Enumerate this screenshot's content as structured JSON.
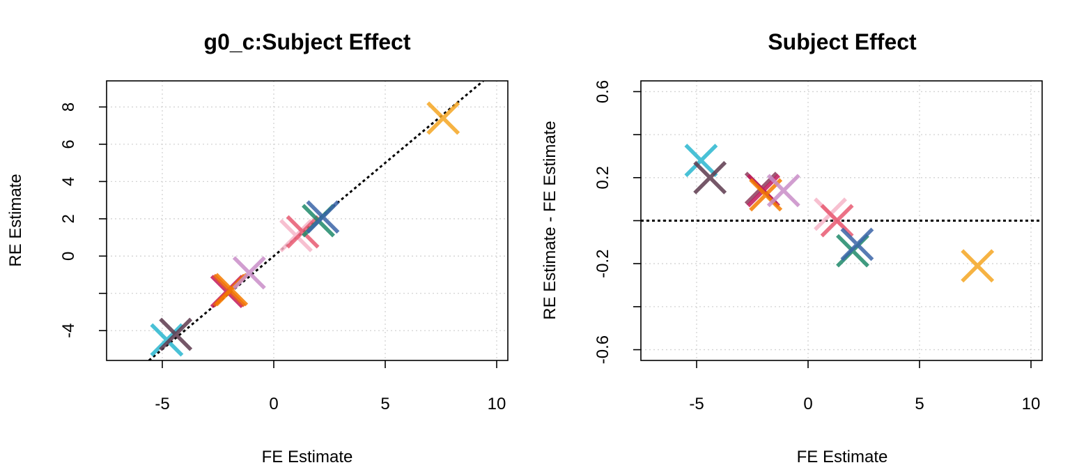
{
  "chart_data": [
    {
      "type": "scatter",
      "title": "g0_c:Subject Effect",
      "xlabel": "FE Estimate",
      "ylabel": "RE Estimate",
      "xlim": [
        -7.5,
        10.5
      ],
      "ylim": [
        -5.6,
        9.4
      ],
      "x_ticks": [
        -5,
        0,
        5,
        10
      ],
      "x_tick_labels": [
        "-5",
        "0",
        "5",
        "10"
      ],
      "y_ticks": [
        -4,
        -2,
        0,
        2,
        4,
        6,
        8
      ],
      "y_tick_labels": [
        "-4",
        "",
        "0",
        "2",
        "4",
        "6",
        "8"
      ],
      "grid": true,
      "reference_line": "y = x",
      "points": [
        {
          "x": -4.8,
          "y": -4.5,
          "color": "#2ab7d0"
        },
        {
          "x": -4.4,
          "y": -4.2,
          "color": "#5e3a4e"
        },
        {
          "x": -2.1,
          "y": -1.9,
          "color": "#c2185b"
        },
        {
          "x": -2.0,
          "y": -1.85,
          "color": "#e85d1c"
        },
        {
          "x": -1.9,
          "y": -1.8,
          "color": "#f57c00"
        },
        {
          "x": -1.1,
          "y": -0.9,
          "color": "#c98ec8"
        },
        {
          "x": 1.0,
          "y": 1.1,
          "color": "#f6b6c8"
        },
        {
          "x": 1.3,
          "y": 1.3,
          "color": "#e85a72"
        },
        {
          "x": 2.0,
          "y": 1.9,
          "color": "#1f8a6a"
        },
        {
          "x": 2.2,
          "y": 2.1,
          "color": "#3a65a8"
        },
        {
          "x": 7.6,
          "y": 7.4,
          "color": "#f5a623"
        }
      ]
    },
    {
      "type": "scatter",
      "title": "Subject Effect",
      "xlabel": "FE Estimate",
      "ylabel": "RE Estimate - FE Estimate",
      "xlim": [
        -7.5,
        10.5
      ],
      "ylim": [
        -0.65,
        0.65
      ],
      "x_ticks": [
        -5,
        0,
        5,
        10
      ],
      "x_tick_labels": [
        "-5",
        "0",
        "5",
        "10"
      ],
      "y_ticks": [
        -0.6,
        -0.4,
        -0.2,
        0,
        0.2,
        0.4,
        0.6
      ],
      "y_tick_labels": [
        "-0.6",
        "",
        "-0.2",
        "",
        "0.2",
        "",
        "0.6"
      ],
      "grid": true,
      "reference_line": "y = 0",
      "points": [
        {
          "x": -4.8,
          "y": 0.28,
          "color": "#2ab7d0"
        },
        {
          "x": -4.4,
          "y": 0.2,
          "color": "#5e3a4e"
        },
        {
          "x": -2.1,
          "y": 0.15,
          "color": "#8e3b5c"
        },
        {
          "x": -2.0,
          "y": 0.14,
          "color": "#c2185b"
        },
        {
          "x": -1.9,
          "y": 0.12,
          "color": "#f57c00"
        },
        {
          "x": -1.1,
          "y": 0.14,
          "color": "#c98ec8"
        },
        {
          "x": 1.0,
          "y": 0.03,
          "color": "#f6b6c8"
        },
        {
          "x": 1.3,
          "y": 0.0,
          "color": "#e85a72"
        },
        {
          "x": 2.0,
          "y": -0.14,
          "color": "#1f8a6a"
        },
        {
          "x": 2.2,
          "y": -0.11,
          "color": "#3a65a8"
        },
        {
          "x": 7.6,
          "y": -0.21,
          "color": "#f5a623"
        }
      ]
    }
  ]
}
